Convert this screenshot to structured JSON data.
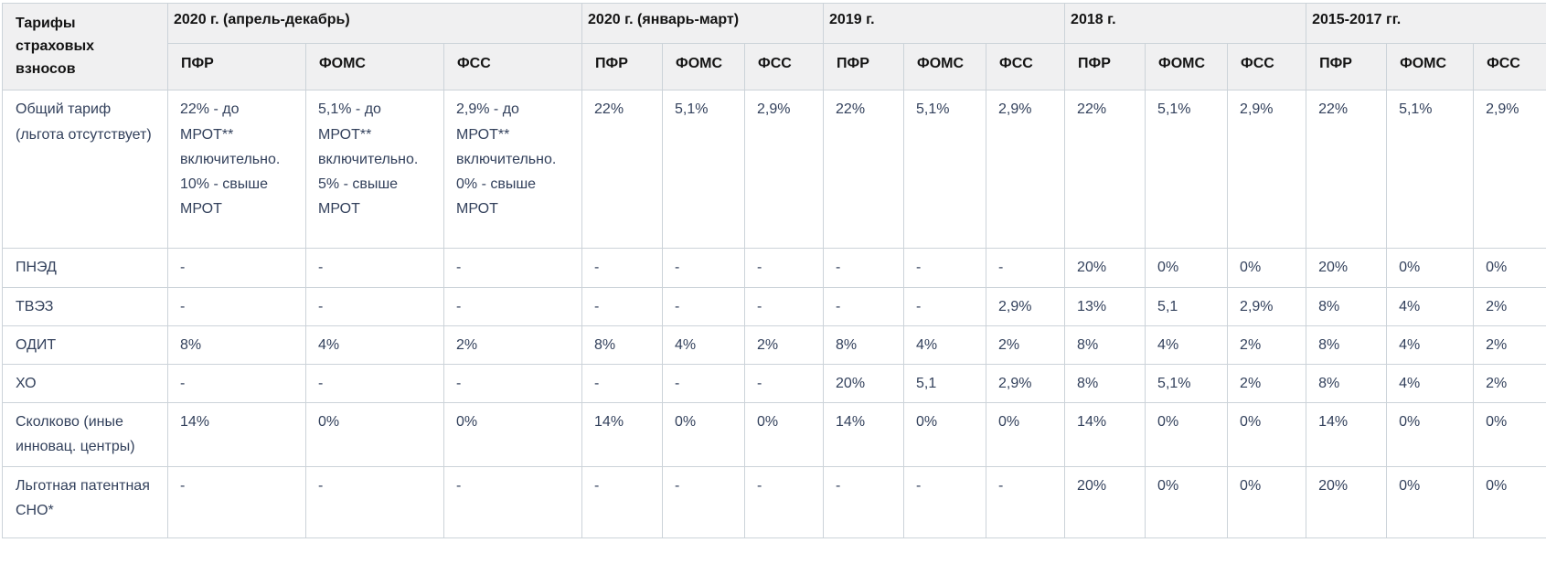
{
  "chart_data": {
    "type": "table",
    "title": "Тарифы страховых взносов",
    "corner_label": "Тарифы страховых взносов",
    "groups": [
      {
        "label": "2020 г. (апрель-декабрь)",
        "cols": [
          "ПФР",
          "ФОМС",
          "ФСС"
        ]
      },
      {
        "label": "2020 г. (январь-март)",
        "cols": [
          "ПФР",
          "ФОМС",
          "ФСС"
        ]
      },
      {
        "label": "2019 г.",
        "cols": [
          "ПФР",
          "ФОМС",
          "ФСС"
        ]
      },
      {
        "label": "2018 г.",
        "cols": [
          "ПФР",
          "ФОМС",
          "ФСС"
        ]
      },
      {
        "label": "2015-2017 гг.",
        "cols": [
          "ПФР",
          "ФОМС",
          "ФСС"
        ]
      }
    ],
    "rows": [
      {
        "label": "Общий тариф (льгота отсутствует)",
        "values": [
          "22% - до МРОТ** включительно. 10%  - свыше МРОТ",
          "5,1% - до МРОТ** включительно. 5% - свыше МРОТ",
          "2,9% - до МРОТ** включительно. 0% - свыше МРОТ",
          "22%",
          "5,1%",
          "2,9%",
          "22%",
          "5,1%",
          "2,9%",
          "22%",
          "5,1%",
          "2,9%",
          "22%",
          "5,1%",
          "2,9%"
        ]
      },
      {
        "label": "ПНЭД",
        "values": [
          "-",
          "-",
          "-",
          "-",
          "-",
          "-",
          "-",
          "-",
          "-",
          "20%",
          "0%",
          "0%",
          "20%",
          "0%",
          "0%"
        ]
      },
      {
        "label": "ТВЭЗ",
        "values": [
          "-",
          "-",
          "-",
          "-",
          "-",
          "-",
          "-",
          "-",
          "2,9%",
          "13%",
          "5,1",
          "2,9%",
          "8%",
          "4%",
          "2%"
        ]
      },
      {
        "label": "ОДИТ",
        "values": [
          "8%",
          "4%",
          "2%",
          "8%",
          "4%",
          "2%",
          "8%",
          "4%",
          "2%",
          "8%",
          "4%",
          "2%",
          "8%",
          "4%",
          "2%"
        ]
      },
      {
        "label": "ХО",
        "values": [
          "-",
          "-",
          "-",
          "-",
          "-",
          "-",
          "20%",
          "5,1",
          "2,9%",
          "8%",
          "5,1%",
          "2%",
          "8%",
          "4%",
          "2%"
        ]
      },
      {
        "label": "Сколково (иные инновац. центры)",
        "values": [
          "14%",
          "0%",
          "0%",
          "14%",
          "0%",
          "0%",
          "14%",
          "0%",
          "0%",
          "14%",
          "0%",
          "0%",
          "14%",
          "0%",
          "0%"
        ]
      },
      {
        "label": "Льготная патентная СНО*",
        "values": [
          "-",
          "-",
          "-",
          "-",
          "-",
          "-",
          "-",
          "-",
          "-",
          "20%",
          "0%",
          "0%",
          "20%",
          "0%",
          "0%"
        ]
      }
    ],
    "colors": {
      "header_bg": "#f0f0f1",
      "header_text": "#141414",
      "body_text": "#33415c",
      "border": "#ccd3d9"
    },
    "layout": {
      "grid": "on",
      "header_rows": 2,
      "funds_per_year_group": 3
    }
  }
}
